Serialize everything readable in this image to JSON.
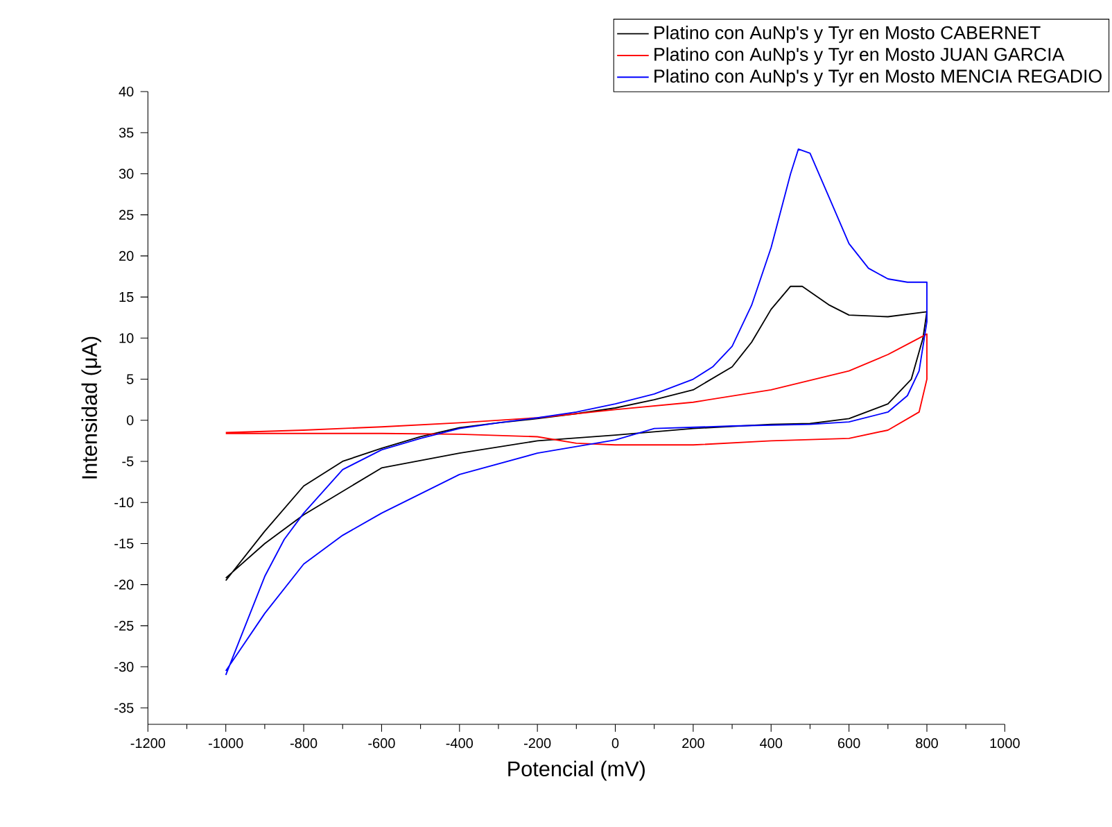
{
  "chart_data": {
    "type": "line",
    "xlabel": "Potencial (mV)",
    "ylabel": "Intensidad (μA)",
    "legend": "top right",
    "xlim": [
      -1200,
      1000
    ],
    "ylim": [
      -37,
      40
    ],
    "xticks": [
      -1200,
      -1000,
      -800,
      -600,
      -400,
      -200,
      0,
      200,
      400,
      600,
      800,
      1000
    ],
    "yticks": [
      -35,
      -30,
      -25,
      -20,
      -15,
      -10,
      -5,
      0,
      5,
      10,
      15,
      20,
      25,
      30,
      35,
      40
    ],
    "series": [
      {
        "name": "Platino con AuNp's y Tyr en Mosto CABERNET",
        "color": "#000000",
        "x": [
          -1000,
          -900,
          -800,
          -700,
          -600,
          -500,
          -400,
          -300,
          -200,
          -100,
          0,
          100,
          200,
          300,
          350,
          400,
          450,
          480,
          550,
          600,
          700,
          800,
          790,
          760,
          700,
          600,
          500,
          400,
          200,
          0,
          -200,
          -400,
          -600,
          -800,
          -900,
          -1000
        ],
        "values": [
          -19.5,
          -13.5,
          -8,
          -5,
          -3.4,
          -2,
          -0.9,
          -0.3,
          0.2,
          0.8,
          1.5,
          2.5,
          3.7,
          6.5,
          9.5,
          13.5,
          16.3,
          16.3,
          14,
          12.8,
          12.6,
          13.2,
          10,
          5,
          2,
          0.2,
          -0.4,
          -0.5,
          -1,
          -1.8,
          -2.5,
          -4,
          -5.8,
          -11.5,
          -15,
          -19.2
        ]
      },
      {
        "name": "Platino con AuNp's y Tyr en Mosto JUAN GARCIA",
        "color": "#ff0000",
        "x": [
          -1000,
          -800,
          -600,
          -400,
          -200,
          0,
          200,
          400,
          600,
          700,
          780,
          800,
          800,
          780,
          700,
          600,
          400,
          200,
          0,
          -100,
          -200,
          -400,
          -600,
          -1000
        ],
        "values": [
          -1.5,
          -1.2,
          -0.8,
          -0.3,
          0.3,
          1.3,
          2.2,
          3.7,
          6,
          8,
          10,
          10.5,
          5,
          1,
          -1.2,
          -2.2,
          -2.5,
          -3,
          -3,
          -2.8,
          -2,
          -1.7,
          -1.6,
          -1.6
        ]
      },
      {
        "name": "Platino con AuNp's y Tyr en Mosto MENCIA REGADIO",
        "color": "#0000ff",
        "x": [
          -1000,
          -950,
          -900,
          -850,
          -800,
          -700,
          -600,
          -500,
          -400,
          -300,
          -200,
          -100,
          0,
          100,
          200,
          250,
          300,
          350,
          400,
          450,
          470,
          500,
          550,
          600,
          650,
          700,
          750,
          800,
          800,
          780,
          750,
          700,
          600,
          500,
          300,
          100,
          0,
          -200,
          -400,
          -600,
          -700,
          -800,
          -900,
          -1000
        ],
        "values": [
          -31,
          -25,
          -19,
          -14.5,
          -11.3,
          -6,
          -3.6,
          -2.2,
          -1,
          -0.3,
          0.3,
          1,
          2,
          3.2,
          5,
          6.5,
          9,
          14,
          21,
          30,
          33,
          32.5,
          27,
          21.5,
          18.5,
          17.2,
          16.8,
          16.8,
          12,
          6,
          3,
          1,
          -0.2,
          -0.5,
          -0.7,
          -1,
          -2.4,
          -4,
          -6.6,
          -11.3,
          -14,
          -17.5,
          -23.5,
          -30.5
        ]
      }
    ]
  }
}
